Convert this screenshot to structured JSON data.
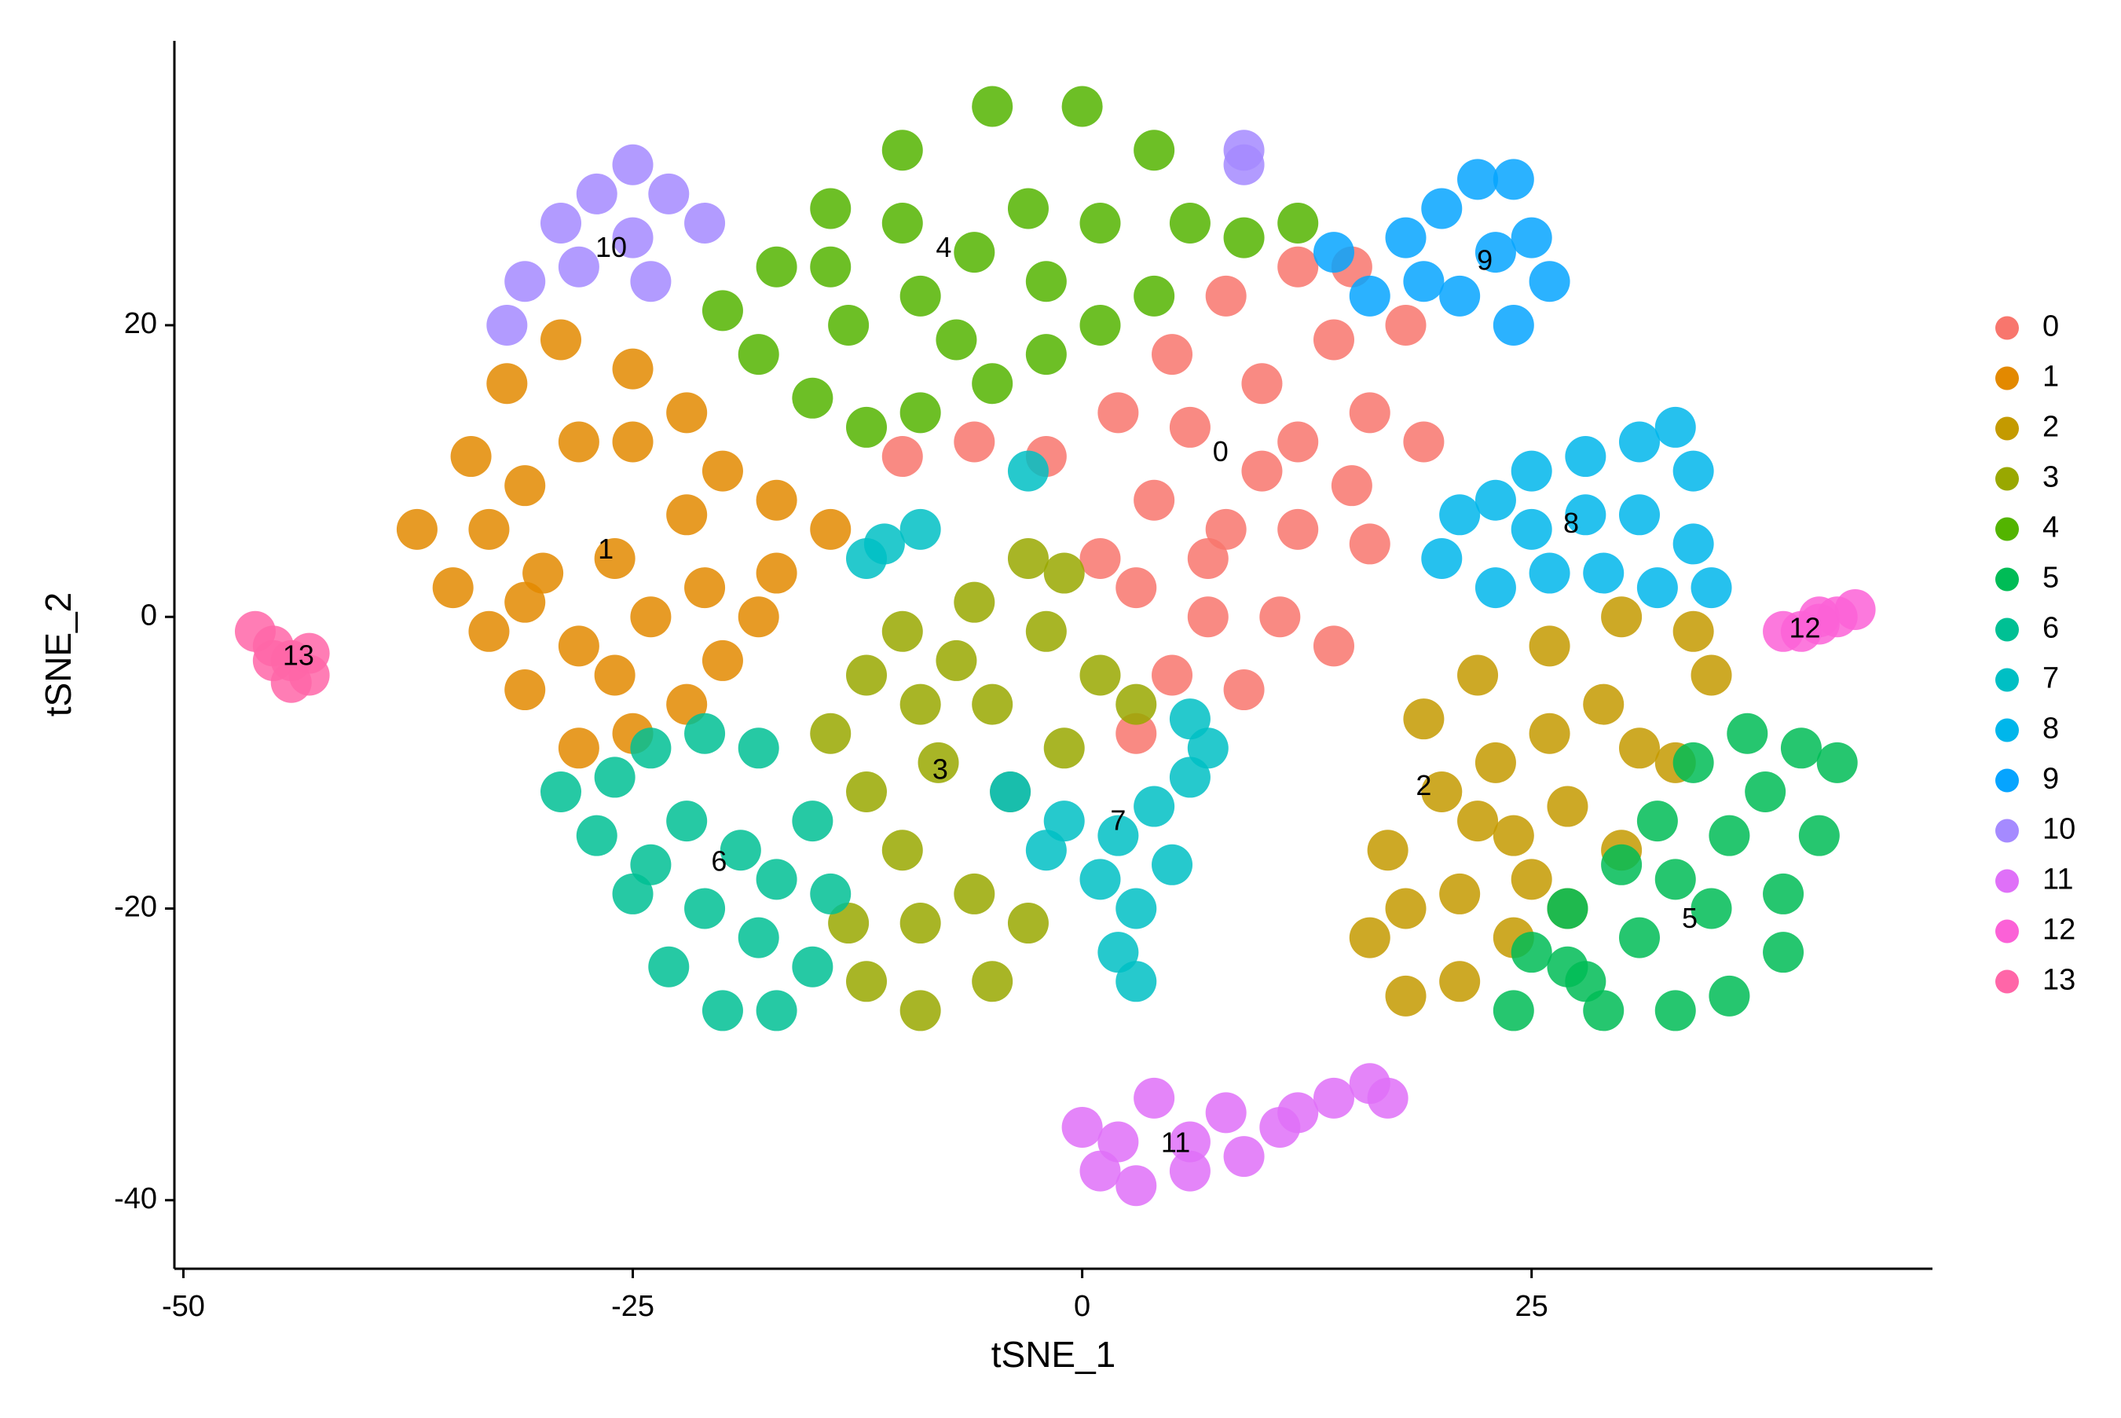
{
  "chart_data": {
    "type": "scatter",
    "x_label": "tSNE_1",
    "y_label": "tSNE_2",
    "xlim": [
      -50.5,
      47.3
    ],
    "ylim": [
      -44.7,
      39.5
    ],
    "xticks": [
      -50,
      -25,
      0,
      25
    ],
    "yticks": [
      -40,
      -20,
      0,
      20
    ],
    "grid": false,
    "legend": "right",
    "series": [
      {
        "name": "0",
        "color": "#F8766D",
        "label_x": 7.7,
        "label_y": 11.2,
        "x": [
          -10,
          -6,
          -2,
          2,
          5,
          8,
          12,
          15,
          18,
          14,
          10,
          6,
          12,
          16,
          19,
          4,
          8,
          12,
          16,
          3,
          7,
          11,
          14,
          5,
          9,
          3,
          1,
          10,
          15,
          7
        ],
        "y": [
          11,
          12,
          11,
          14,
          18,
          22,
          24,
          24,
          20,
          19,
          16,
          13,
          12,
          14,
          12,
          8,
          6,
          6,
          5,
          2,
          0,
          0,
          -2,
          -4,
          -5,
          -8,
          4,
          10,
          9,
          4
        ]
      },
      {
        "name": "1",
        "color": "#E38900",
        "label_x": -26.5,
        "label_y": 4.5,
        "x": [
          -37,
          -35,
          -33,
          -31,
          -28,
          -25,
          -22,
          -20,
          -18,
          -17,
          -17,
          -20,
          -22,
          -25,
          -29,
          -32,
          -34,
          -31,
          -28,
          -25,
          -22,
          -26,
          -30,
          -24,
          -28,
          -31,
          -21,
          -26,
          -33,
          -14
        ],
        "y": [
          6,
          2,
          -1,
          -5,
          -9,
          -8,
          -6,
          -3,
          0,
          3,
          8,
          10,
          14,
          17,
          19,
          16,
          11,
          9,
          12,
          12,
          7,
          4,
          3,
          0,
          -2,
          1,
          2,
          -4,
          6,
          6
        ]
      },
      {
        "name": "2",
        "color": "#C49A00",
        "label_x": 19,
        "label_y": -11.7,
        "x": [
          17,
          16,
          18,
          21,
          24,
          27,
          30,
          33,
          35,
          34,
          30,
          26,
          22,
          19,
          20,
          23,
          26,
          29,
          31,
          27,
          24,
          21,
          18,
          25,
          22
        ],
        "y": [
          -16,
          -22,
          -26,
          -25,
          -22,
          -20,
          -16,
          -10,
          -4,
          -1,
          0,
          -2,
          -4,
          -7,
          -12,
          -10,
          -8,
          -6,
          -9,
          -13,
          -15,
          -19,
          -20,
          -18,
          -14
        ]
      },
      {
        "name": "3",
        "color": "#99A800",
        "label_x": -7.9,
        "label_y": -10.6,
        "x": [
          -14,
          -12,
          -10,
          -6,
          -3,
          -2,
          1,
          3,
          -1,
          -5,
          -9,
          -12,
          -10,
          -13,
          -12,
          -9,
          -5,
          -3,
          -6,
          -9,
          -4,
          -8,
          -1,
          -7
        ],
        "y": [
          -8,
          -4,
          -1,
          1,
          4,
          -1,
          -4,
          -6,
          -9,
          -6,
          -6,
          -12,
          -16,
          -21,
          -25,
          -27,
          -25,
          -21,
          -19,
          -21,
          -12,
          -10,
          3,
          -3
        ]
      },
      {
        "name": "4",
        "color": "#53B400",
        "label_x": -7.7,
        "label_y": 25.2,
        "x": [
          -20,
          -17,
          -14,
          -10,
          -5,
          0,
          4,
          6,
          4,
          1,
          -2,
          -5,
          -9,
          -12,
          -15,
          -18,
          -13,
          -9,
          -6,
          -3,
          1,
          -10,
          -2,
          -7,
          -14,
          9,
          12
        ],
        "y": [
          21,
          24,
          28,
          32,
          35,
          35,
          32,
          27,
          22,
          20,
          18,
          16,
          14,
          13,
          15,
          18,
          20,
          22,
          25,
          28,
          27,
          27,
          23,
          19,
          24,
          26,
          27
        ]
      },
      {
        "name": "5",
        "color": "#00BC56",
        "label_x": 33.8,
        "label_y": -20.8,
        "x": [
          24,
          25,
          27,
          30,
          32,
          34,
          37,
          40,
          42,
          41,
          39,
          39,
          36,
          33,
          29,
          27,
          31,
          35,
          36,
          33,
          28,
          38
        ],
        "y": [
          -27,
          -23,
          -20,
          -17,
          -14,
          -10,
          -8,
          -9,
          -10,
          -15,
          -19,
          -23,
          -26,
          -27,
          -27,
          -24,
          -22,
          -20,
          -15,
          -18,
          -25,
          -12
        ]
      },
      {
        "name": "6",
        "color": "#00C094",
        "label_x": -20.2,
        "label_y": -16.9,
        "x": [
          -29,
          -27,
          -25,
          -23,
          -20,
          -17,
          -15,
          -14,
          -15,
          -18,
          -21,
          -24,
          -26,
          -22,
          -19,
          -21,
          -18,
          -17,
          -24
        ],
        "y": [
          -12,
          -15,
          -19,
          -24,
          -27,
          -27,
          -24,
          -19,
          -14,
          -9,
          -8,
          -9,
          -11,
          -14,
          -16,
          -20,
          -22,
          -18,
          -17
        ]
      },
      {
        "name": "7",
        "color": "#00BFC4",
        "label_x": 2,
        "label_y": -14.1,
        "x": [
          -4,
          -1,
          2,
          4,
          6,
          7,
          5,
          3,
          2,
          3,
          1,
          -2,
          -11,
          -9,
          -12,
          -3,
          6
        ],
        "y": [
          -12,
          -14,
          -15,
          -13,
          -11,
          -9,
          -17,
          -20,
          -23,
          -25,
          -18,
          -16,
          5,
          6,
          4,
          10,
          -7
        ]
      },
      {
        "name": "8",
        "color": "#00B6EB",
        "label_x": 27.2,
        "label_y": 6.3,
        "x": [
          20,
          21,
          23,
          25,
          28,
          31,
          33,
          34,
          34,
          35,
          32,
          29,
          26,
          23,
          28,
          31,
          25
        ],
        "y": [
          4,
          7,
          8,
          10,
          11,
          12,
          13,
          10,
          5,
          2,
          2,
          3,
          3,
          2,
          7,
          7,
          6
        ]
      },
      {
        "name": "9",
        "color": "#06A4FF",
        "label_x": 22.4,
        "label_y": 24.3,
        "x": [
          14,
          16,
          18,
          20,
          22,
          24,
          25,
          26,
          24,
          21,
          19,
          23
        ],
        "y": [
          25,
          22,
          26,
          28,
          30,
          30,
          26,
          23,
          20,
          22,
          23,
          25
        ]
      },
      {
        "name": "10",
        "color": "#A58AFF",
        "label_x": -26.2,
        "label_y": 25.2,
        "x": [
          -32,
          -31,
          -29,
          -27,
          -25,
          -23,
          -21,
          -25,
          -28,
          -24,
          9,
          9
        ],
        "y": [
          20,
          23,
          27,
          29,
          31,
          29,
          27,
          26,
          24,
          23,
          31,
          32
        ]
      },
      {
        "name": "11",
        "color": "#DF70F8",
        "label_x": 5.2,
        "label_y": -36.2,
        "x": [
          0,
          1,
          3,
          6,
          9,
          11,
          12,
          8,
          4,
          6,
          2,
          14,
          16,
          17
        ],
        "y": [
          -35,
          -38,
          -39,
          -38,
          -37,
          -35,
          -34,
          -34,
          -33,
          -36,
          -36,
          -33,
          -32,
          -33
        ]
      },
      {
        "name": "12",
        "color": "#FB61D7",
        "label_x": 40.2,
        "label_y": -0.9,
        "x": [
          39,
          40,
          41,
          42,
          43,
          41
        ],
        "y": [
          -1,
          -1,
          -0.5,
          0,
          0.5,
          0
        ]
      },
      {
        "name": "13",
        "color": "#FF66A8",
        "label_x": -43.6,
        "label_y": -2.8,
        "x": [
          -46,
          -45,
          -44,
          -43,
          -43,
          -44,
          -45
        ],
        "y": [
          -1,
          -2,
          -3,
          -2.5,
          -4,
          -4.5,
          -3
        ]
      }
    ]
  }
}
